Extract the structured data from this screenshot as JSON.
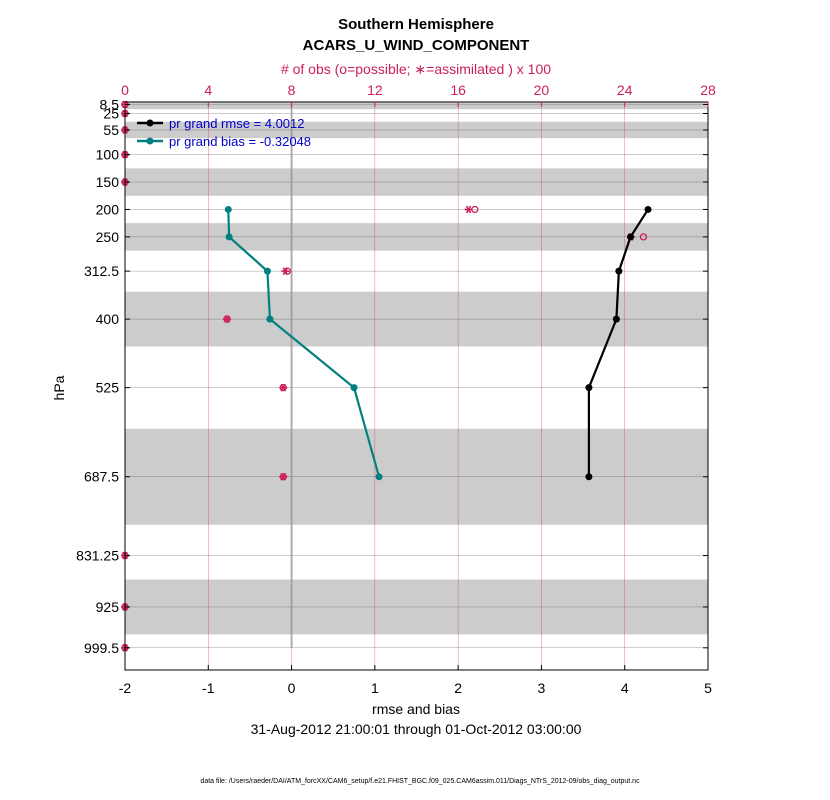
{
  "chart_data": {
    "type": "line",
    "title": "Southern Hemisphere",
    "subtitle": "ACARS_U_WIND_COMPONENT",
    "top_axis_label": "# of obs (o=possible; ∗=assimilated ) x 100",
    "xlabel": "rmse and bias",
    "ylabel": "hPa",
    "date_range": "31-Aug-2012 21:00:01 through 01-Oct-2012 03:00:00",
    "footer": "data file: /Users/raeder/DAI/ATM_forcXX/CAM6_setup/f.e21.FHIST_BGC.f09_025.CAM6assim.011/Diags_NTrS_2012-09/obs_diag_output.nc",
    "xlim": [
      -2,
      5
    ],
    "xticks": [
      "-2",
      "-1",
      "0",
      "1",
      "2",
      "3",
      "4",
      "5"
    ],
    "top_xlim": [
      0,
      28
    ],
    "top_xticks": [
      "0",
      "4",
      "8",
      "12",
      "16",
      "20",
      "24",
      "28"
    ],
    "ylim": [
      1040,
      4
    ],
    "levels": [
      8.5,
      25,
      55,
      100,
      150,
      200,
      250,
      312.5,
      400,
      525,
      687.5,
      831.25,
      925,
      999.5
    ],
    "level_labels": [
      "8.5",
      "25",
      "55",
      "100",
      "150",
      "200",
      "250",
      "312.5",
      "400",
      "525",
      "687.5",
      "831.25",
      "925",
      "999.5"
    ],
    "shaded_bands": [
      [
        4,
        17
      ],
      [
        40,
        70
      ],
      [
        125,
        175
      ],
      [
        225,
        275
      ],
      [
        350,
        450
      ],
      [
        600,
        775
      ],
      [
        875,
        975
      ]
    ],
    "series": [
      {
        "name": "pr grand rmse = 4.0012",
        "color": "#000000",
        "levels": [
          200,
          250,
          312.5,
          400,
          525,
          687.5
        ],
        "values": [
          4.28,
          4.07,
          3.93,
          3.9,
          3.57,
          3.57
        ]
      },
      {
        "name": "pr grand bias = -0.32048",
        "color": "#008080",
        "levels": [
          200,
          250,
          312.5,
          400,
          525,
          687.5
        ],
        "values": [
          -0.76,
          -0.75,
          -0.29,
          -0.26,
          0.75,
          1.05
        ]
      }
    ],
    "obs_counts": {
      "color": "#cc1e5a",
      "levels": [
        8.5,
        25,
        55,
        100,
        150,
        200,
        250,
        312.5,
        400,
        525,
        687.5,
        831.25,
        925,
        999.5
      ],
      "possible": [
        0,
        0,
        0,
        0,
        0,
        16.8,
        24.9,
        7.8,
        4.9,
        7.6,
        7.6,
        0,
        0,
        0
      ],
      "assimilated": [
        0,
        0,
        0,
        0,
        0,
        16.5,
        24.3,
        7.7,
        4.9,
        7.6,
        7.6,
        0,
        0,
        0
      ]
    }
  }
}
